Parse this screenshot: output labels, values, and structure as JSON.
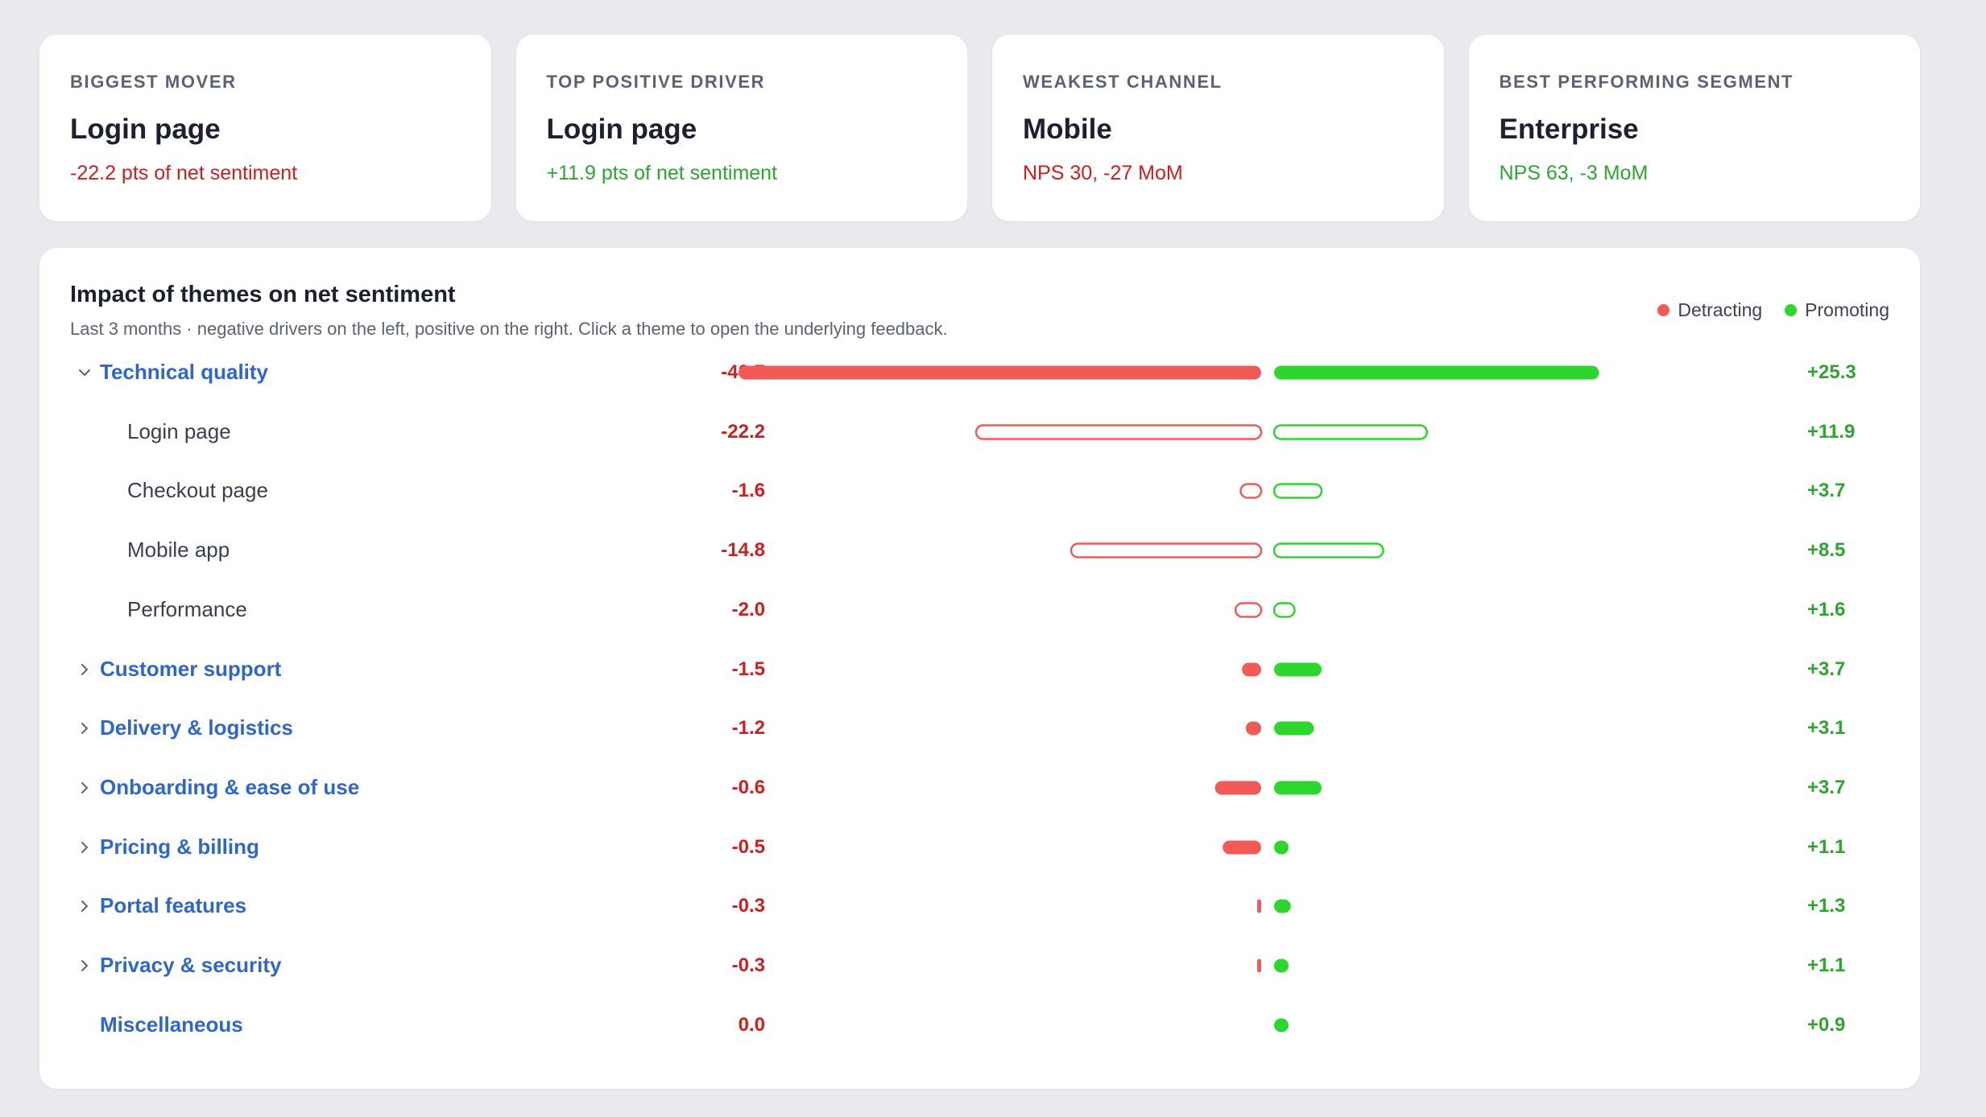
{
  "kpis": [
    {
      "label": "BIGGEST MOVER",
      "value": "Login page",
      "sub": "-22.2 pts of net sentiment",
      "tone": "neg"
    },
    {
      "label": "TOP POSITIVE DRIVER",
      "value": "Login page",
      "sub": "+11.9 pts of net sentiment",
      "tone": "pos"
    },
    {
      "label": "WEAKEST CHANNEL",
      "value": "Mobile",
      "sub": "NPS 30, -27 MoM",
      "tone": "neg"
    },
    {
      "label": "BEST PERFORMING SEGMENT",
      "value": "Enterprise",
      "sub": "NPS 63, -3 MoM",
      "tone": "pos"
    }
  ],
  "panel": {
    "title": "Impact of themes on net sentiment",
    "subtitle": "Last 3 months · negative drivers on the left, positive on the right. Click a theme to open the underlying feedback.",
    "legend": {
      "detracting": "Detracting",
      "promoting": "Promoting"
    }
  },
  "colors": {
    "detracting": "#f15a57",
    "promoting": "#2cd62c",
    "neg_text": "#cc1f1f",
    "pos_text": "#2ea52e",
    "theme_link": "#2f67c9"
  },
  "chart_data": {
    "type": "bar",
    "scale_max": 40.7,
    "rows": [
      {
        "label": "Technical quality",
        "kind": "theme",
        "chevron": "down",
        "neg": -40.7,
        "neg_label": "-40.7",
        "pos": 25.3,
        "pos_label": "+25.3"
      },
      {
        "label": "Login page",
        "kind": "sub",
        "chevron": "none",
        "neg": -22.2,
        "neg_label": "-22.2",
        "pos": 11.9,
        "pos_label": "+11.9"
      },
      {
        "label": "Checkout page",
        "kind": "sub",
        "chevron": "none",
        "neg": -1.6,
        "neg_label": "-1.6",
        "pos": 3.7,
        "pos_label": "+3.7"
      },
      {
        "label": "Mobile app",
        "kind": "sub",
        "chevron": "none",
        "neg": -14.8,
        "neg_label": "-14.8",
        "pos": 8.5,
        "pos_label": "+8.5"
      },
      {
        "label": "Performance",
        "kind": "sub",
        "chevron": "none",
        "neg": -2.0,
        "neg_label": "-2.0",
        "pos": 1.6,
        "pos_label": "+1.6"
      },
      {
        "label": "Customer support",
        "kind": "theme",
        "chevron": "right",
        "neg": -1.5,
        "neg_label": "-1.5",
        "pos": 3.7,
        "pos_label": "+3.7"
      },
      {
        "label": "Delivery & logistics",
        "kind": "theme",
        "chevron": "right",
        "neg": -1.2,
        "neg_label": "-1.2",
        "pos": 3.1,
        "pos_label": "+3.1"
      },
      {
        "label": "Onboarding & ease of use",
        "kind": "theme",
        "chevron": "right",
        "neg": -0.6,
        "neg_label": "-0.6",
        "pos": 3.7,
        "pos_label": "+3.7"
      },
      {
        "label": "Pricing & billing",
        "kind": "theme",
        "chevron": "right",
        "neg": -0.5,
        "neg_label": "-0.5",
        "pos": 1.1,
        "pos_label": "+1.1"
      },
      {
        "label": "Portal features",
        "kind": "theme",
        "chevron": "right",
        "neg": -0.3,
        "neg_label": "-0.3",
        "pos": 1.3,
        "pos_label": "+1.3"
      },
      {
        "label": "Privacy & security",
        "kind": "theme",
        "chevron": "right",
        "neg": -0.3,
        "neg_label": "-0.3",
        "pos": 1.1,
        "pos_label": "+1.1"
      },
      {
        "label": "Miscellaneous",
        "kind": "theme",
        "chevron": "none",
        "neg": 0.0,
        "neg_label": "0.0",
        "pos": 0.9,
        "pos_label": "+0.9"
      }
    ]
  }
}
